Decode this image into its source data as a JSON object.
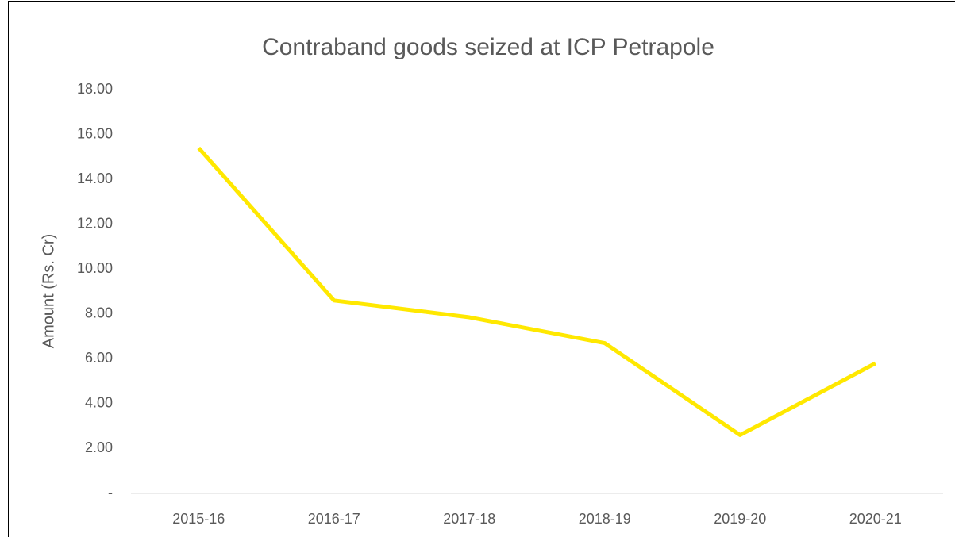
{
  "chart_data": {
    "type": "line",
    "title": "Contraband goods seized at ICP Petrapole",
    "y_label": "Amount (Rs. Cr)",
    "categories": [
      "2015-16",
      "2016-17",
      "2017-18",
      "2018-19",
      "2019-20",
      "2020-21"
    ],
    "series": [
      {
        "color": "#ffe800",
        "values": [
          15.4,
          8.6,
          7.85,
          6.7,
          2.6,
          5.8
        ]
      }
    ],
    "ylim": [
      0,
      18
    ],
    "yticks": [
      {
        "value": 0,
        "label": "-"
      },
      {
        "value": 2,
        "label": "2.00"
      },
      {
        "value": 4,
        "label": "4.00"
      },
      {
        "value": 6,
        "label": "6.00"
      },
      {
        "value": 8,
        "label": "8.00"
      },
      {
        "value": 10,
        "label": "10.00"
      },
      {
        "value": 12,
        "label": "12.00"
      },
      {
        "value": 14,
        "label": "14.00"
      },
      {
        "value": 16,
        "label": "16.00"
      },
      {
        "value": 18,
        "label": "18.00"
      }
    ],
    "grid": false
  }
}
